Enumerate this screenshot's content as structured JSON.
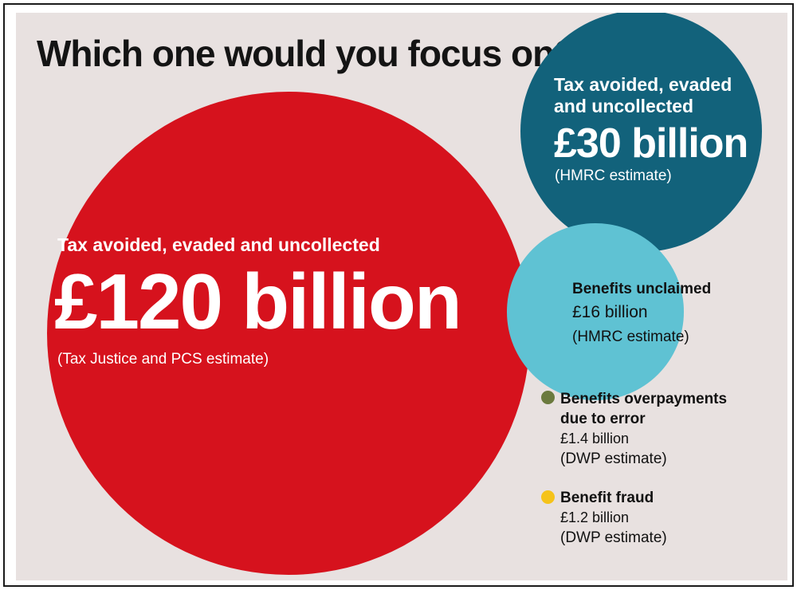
{
  "title": "Which one would you focus on?",
  "colors": {
    "background": "#e8e1e0",
    "red": "#d6121d",
    "teal": "#12627b",
    "light_blue": "#5fc2d3",
    "olive": "#6b7a3e",
    "yellow": "#f5c31a"
  },
  "chart_data": {
    "type": "bubble",
    "title": "Which one would you focus on?",
    "unit": "£ billion",
    "items": [
      {
        "label": "Tax avoided, evaded and uncollected",
        "value": 120,
        "value_text": "£120 billion",
        "source": "(Tax Justice and PCS estimate)",
        "color": "#d6121d"
      },
      {
        "label": "Tax avoided, evaded and uncollected",
        "value": 30,
        "value_text": "£30 billion",
        "source": "(HMRC estimate)",
        "color": "#12627b"
      },
      {
        "label": "Benefits unclaimed",
        "value": 16,
        "value_text": "£16 billion",
        "source": "(HMRC estimate)",
        "color": "#5fc2d3"
      },
      {
        "label": "Benefits overpayments due to error",
        "label_lines": [
          "Benefits overpayments",
          "due to error"
        ],
        "value": 1.4,
        "value_text": "£1.4 billion",
        "source": "(DWP estimate)",
        "color": "#6b7a3e"
      },
      {
        "label": "Benefit fraud",
        "value": 1.2,
        "value_text": "£1.2 billion",
        "source": "(DWP estimate)",
        "color": "#f5c31a"
      }
    ]
  }
}
